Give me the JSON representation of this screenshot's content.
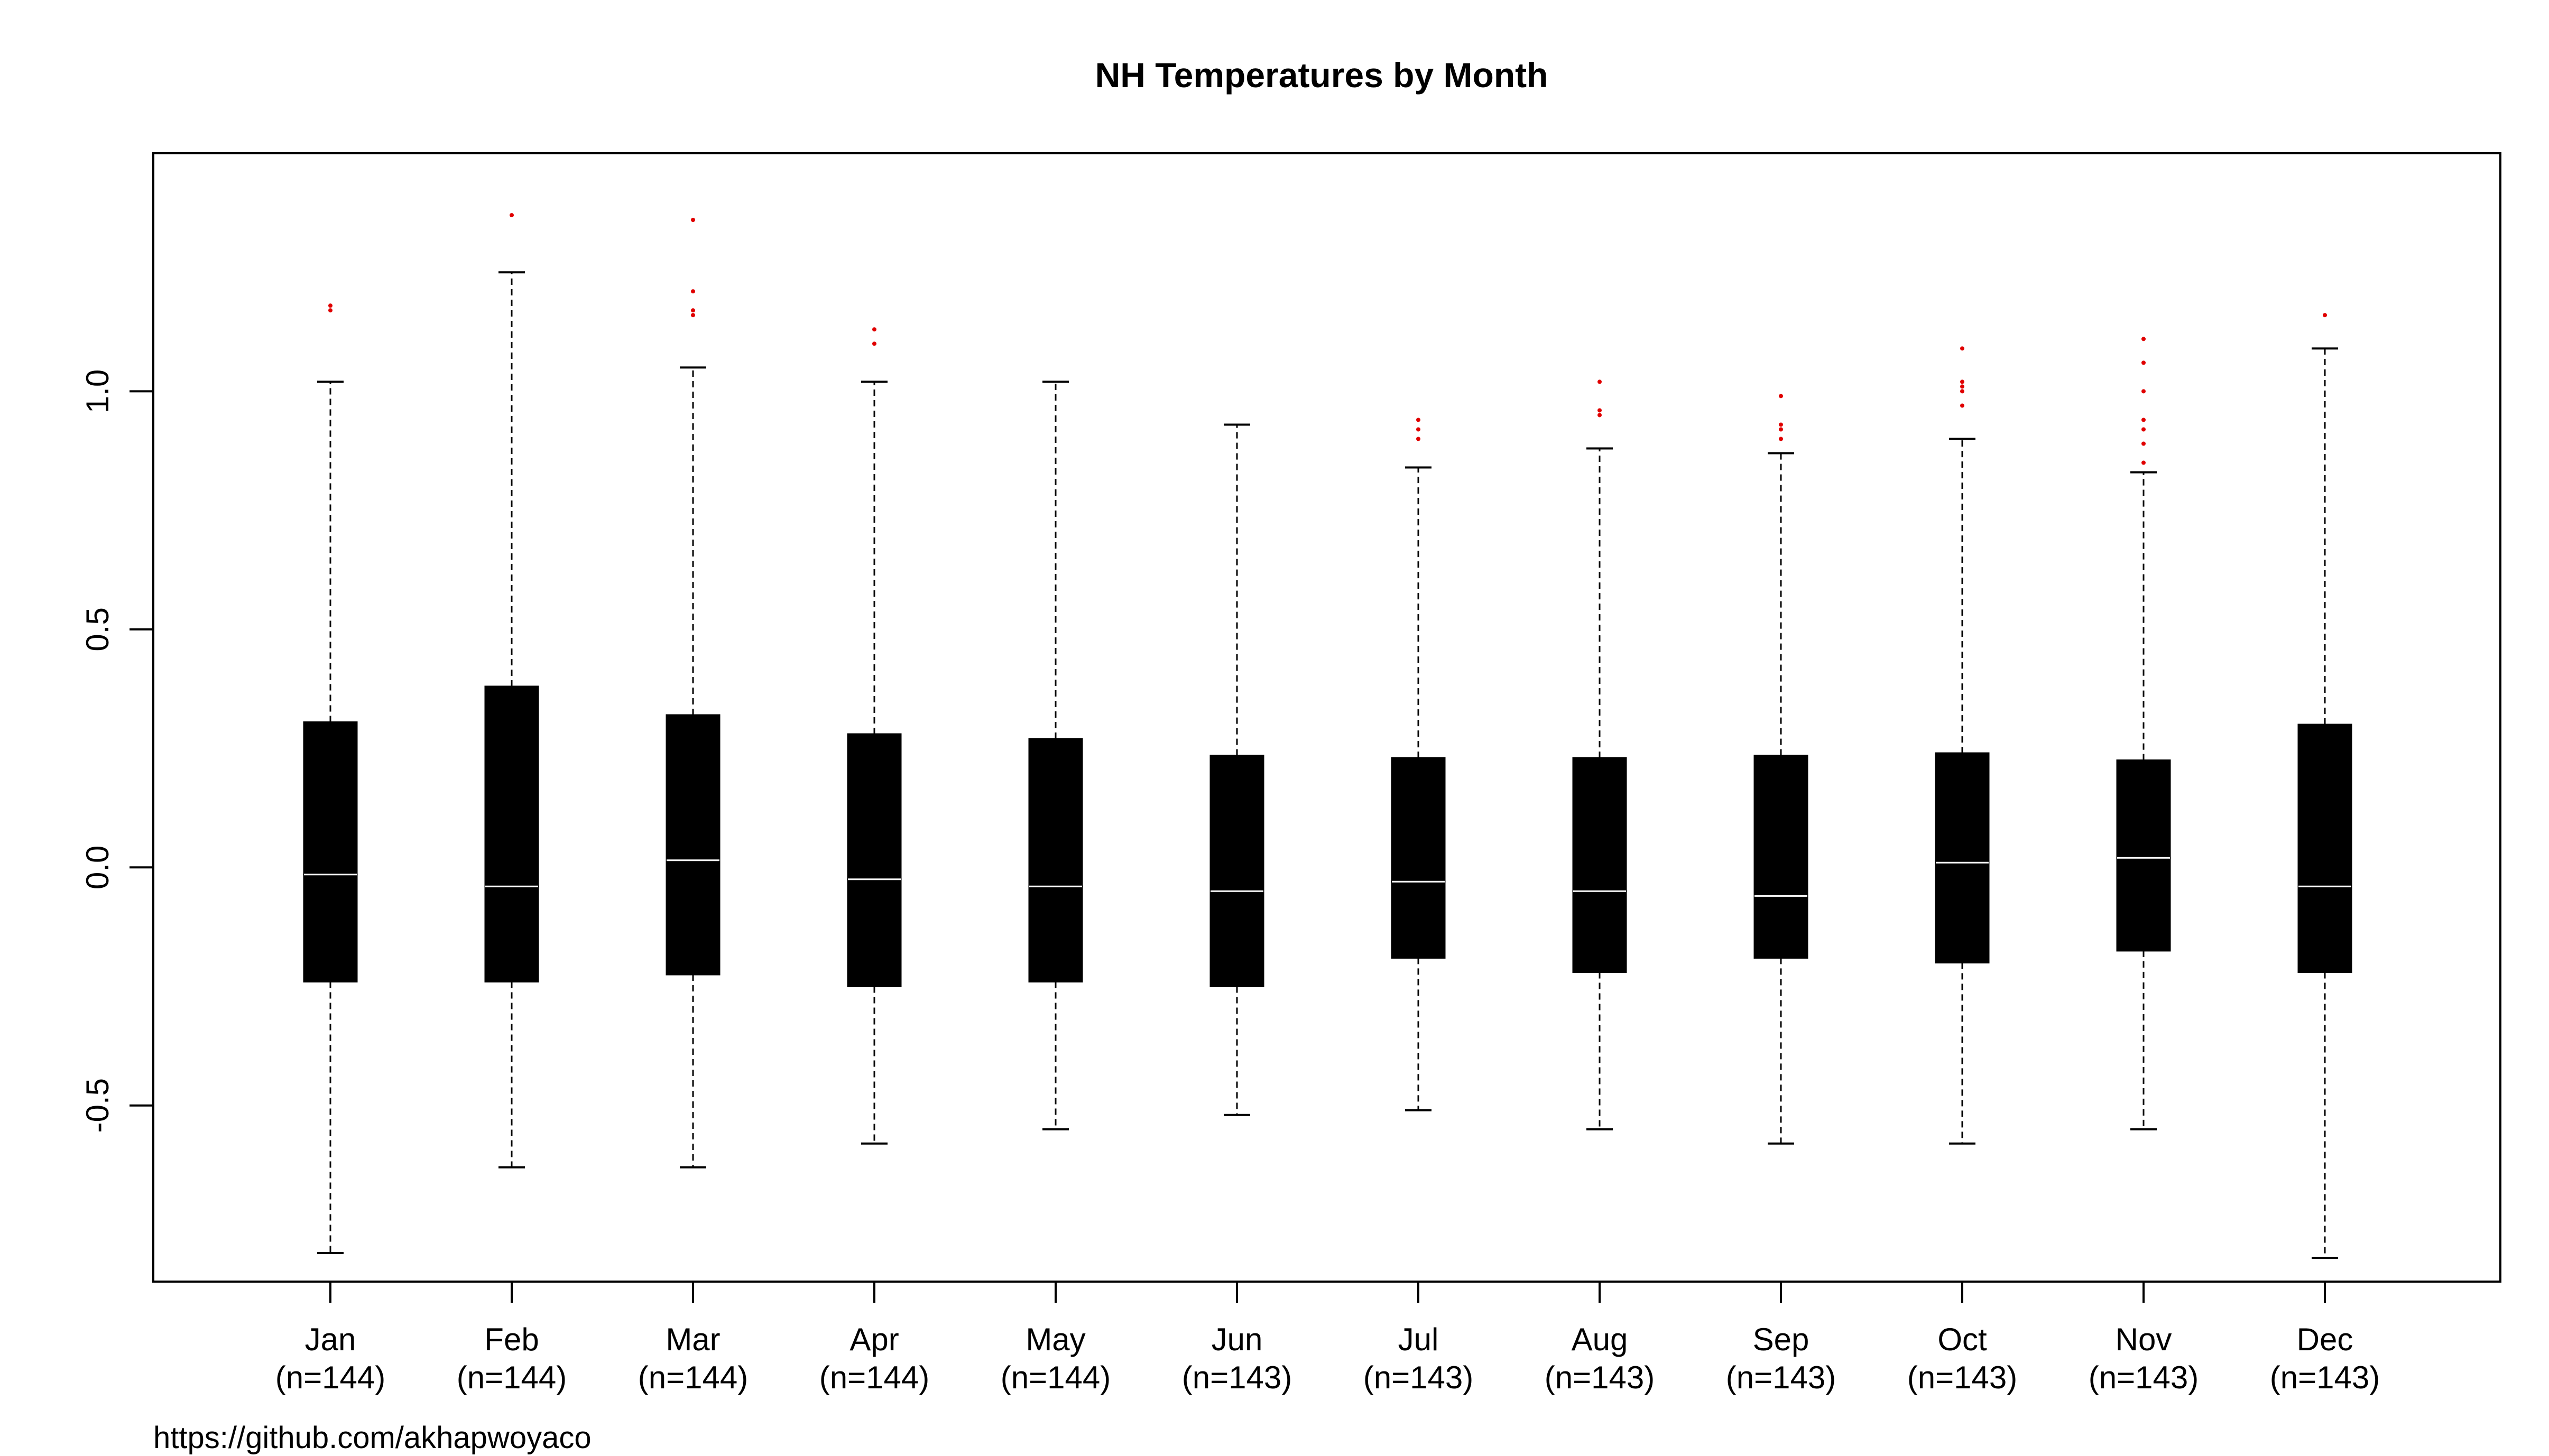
{
  "chart_data": {
    "type": "boxplot",
    "title": "NH Temperatures by Month",
    "xlabel": "",
    "ylabel": "",
    "ylim": [
      -0.87,
      1.5
    ],
    "yticks": [
      "-0.5",
      "0.0",
      "0.5",
      "1.0"
    ],
    "yticks_values": [
      -0.5,
      0.0,
      0.5,
      1.0
    ],
    "grid": false,
    "legend": "none",
    "footer": "https://github.com/akhapwoyaco",
    "colors": {
      "box": "#000000",
      "median": "#ffffff",
      "whisker": "#000000",
      "outlier": "#e00000"
    },
    "categories": [
      {
        "label": "Jan",
        "n_label": "(n=144)",
        "whisker_low": -0.81,
        "q1": -0.24,
        "median": -0.015,
        "q3": 0.305,
        "whisker_high": 1.02,
        "outliers": [
          1.17,
          1.18
        ]
      },
      {
        "label": "Feb",
        "n_label": "(n=144)",
        "whisker_low": -0.63,
        "q1": -0.24,
        "median": -0.04,
        "q3": 0.38,
        "whisker_high": 1.25,
        "outliers": [
          1.37
        ]
      },
      {
        "label": "Mar",
        "n_label": "(n=144)",
        "whisker_low": -0.63,
        "q1": -0.225,
        "median": 0.015,
        "q3": 0.32,
        "whisker_high": 1.05,
        "outliers": [
          1.16,
          1.17,
          1.21,
          1.36
        ]
      },
      {
        "label": "Apr",
        "n_label": "(n=144)",
        "whisker_low": -0.58,
        "q1": -0.25,
        "median": -0.025,
        "q3": 0.28,
        "whisker_high": 1.02,
        "outliers": [
          1.1,
          1.13
        ]
      },
      {
        "label": "May",
        "n_label": "(n=144)",
        "whisker_low": -0.55,
        "q1": -0.24,
        "median": -0.04,
        "q3": 0.27,
        "whisker_high": 1.02,
        "outliers": []
      },
      {
        "label": "Jun",
        "n_label": "(n=143)",
        "whisker_low": -0.52,
        "q1": -0.25,
        "median": -0.05,
        "q3": 0.235,
        "whisker_high": 0.93,
        "outliers": []
      },
      {
        "label": "Jul",
        "n_label": "(n=143)",
        "whisker_low": -0.51,
        "q1": -0.19,
        "median": -0.03,
        "q3": 0.23,
        "whisker_high": 0.84,
        "outliers": [
          0.9,
          0.92,
          0.94
        ]
      },
      {
        "label": "Aug",
        "n_label": "(n=143)",
        "whisker_low": -0.55,
        "q1": -0.22,
        "median": -0.05,
        "q3": 0.23,
        "whisker_high": 0.88,
        "outliers": [
          0.95,
          0.96,
          1.02
        ]
      },
      {
        "label": "Sep",
        "n_label": "(n=143)",
        "whisker_low": -0.58,
        "q1": -0.19,
        "median": -0.06,
        "q3": 0.235,
        "whisker_high": 0.87,
        "outliers": [
          0.9,
          0.92,
          0.93,
          0.99
        ]
      },
      {
        "label": "Oct",
        "n_label": "(n=143)",
        "whisker_low": -0.58,
        "q1": -0.2,
        "median": 0.01,
        "q3": 0.24,
        "whisker_high": 0.9,
        "outliers": [
          0.97,
          1.0,
          1.01,
          1.02,
          1.09
        ]
      },
      {
        "label": "Nov",
        "n_label": "(n=143)",
        "whisker_low": -0.55,
        "q1": -0.175,
        "median": 0.02,
        "q3": 0.225,
        "whisker_high": 0.83,
        "outliers": [
          0.85,
          0.89,
          0.92,
          0.94,
          1.0,
          1.06,
          1.11
        ]
      },
      {
        "label": "Dec",
        "n_label": "(n=143)",
        "whisker_low": -0.82,
        "q1": -0.22,
        "median": -0.04,
        "q3": 0.3,
        "whisker_high": 1.09,
        "outliers": [
          1.16
        ]
      }
    ]
  }
}
